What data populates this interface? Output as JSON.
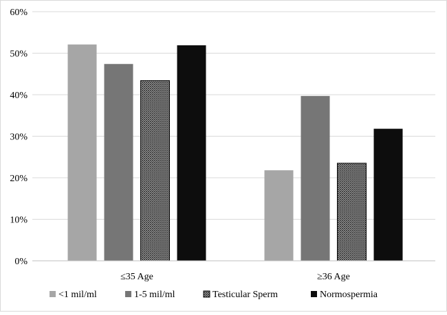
{
  "chart_data": {
    "type": "bar",
    "title": "",
    "xlabel": "",
    "ylabel": "",
    "categories": [
      "≤35 Age",
      "≥36 Age"
    ],
    "ylim": [
      0,
      60
    ],
    "y_ticks": [
      "0%",
      "10%",
      "20%",
      "30%",
      "40%",
      "50%",
      "60%"
    ],
    "y_tick_values": [
      0,
      10,
      20,
      30,
      40,
      50,
      60
    ],
    "grid": true,
    "legend_position": "bottom",
    "series": [
      {
        "name": "<1 mil/ml",
        "values": [
          52.1,
          21.8
        ],
        "color": "#a6a6a6",
        "pattern": "solid"
      },
      {
        "name": "1-5 mil/ml",
        "values": [
          47.4,
          39.7
        ],
        "color": "#767676",
        "pattern": "solid"
      },
      {
        "name": "Testicular Sperm",
        "values": [
          43.4,
          23.5
        ],
        "color": "#8c8c8c",
        "pattern": "crosshatch"
      },
      {
        "name": "Normospermia",
        "values": [
          51.9,
          31.8
        ],
        "color": "#0d0d0d",
        "pattern": "solid"
      }
    ]
  }
}
